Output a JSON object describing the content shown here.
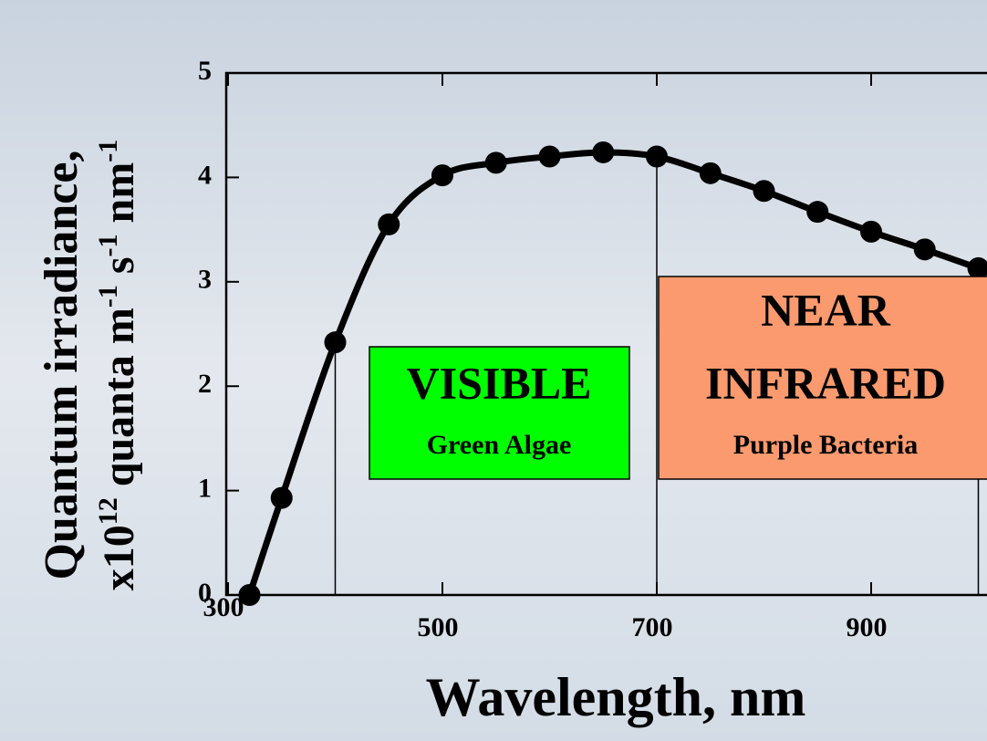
{
  "chart_data": {
    "type": "line",
    "x_label": "Wavelength, nm",
    "y_label_line1": "Quantum irradiance,",
    "y_label_line2": [
      "x10",
      "12",
      " quanta m",
      "-1",
      " s",
      "-1",
      " nm",
      "-1"
    ],
    "x": [
      320,
      350,
      400,
      450,
      500,
      550,
      600,
      650,
      700,
      750,
      800,
      850,
      900,
      950,
      1000
    ],
    "series": [
      {
        "color": "#000000",
        "values": [
          0,
          0.93,
          2.42,
          3.55,
          4.02,
          4.14,
          4.2,
          4.24,
          4.2,
          4.04,
          3.87,
          3.67,
          3.48,
          3.31,
          3.13
        ]
      }
    ],
    "xlim": [
      300,
      1010
    ],
    "ylim": [
      0,
      5
    ],
    "xticks": [
      300,
      500,
      700,
      900
    ],
    "yticks": [
      0,
      1,
      2,
      3,
      4,
      5
    ],
    "boundaries": [
      400,
      700,
      1000
    ],
    "regions": [
      {
        "lines": [
          "VISIBLE"
        ],
        "sub": "Green Algae",
        "color": "#00ff00"
      },
      {
        "lines": [
          "NEAR",
          "INFRARED"
        ],
        "sub": "Purple Bacteria",
        "color": "#fa9a6e"
      }
    ]
  }
}
